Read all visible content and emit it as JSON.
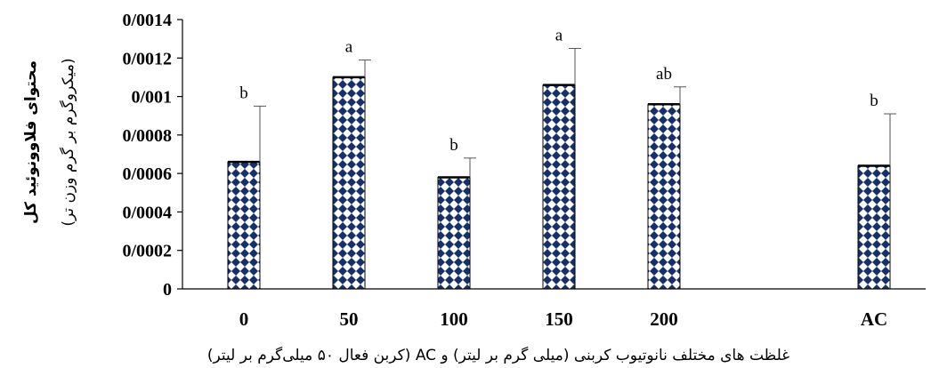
{
  "chart_data": {
    "type": "bar",
    "categories": [
      "0",
      "50",
      "100",
      "150",
      "200",
      "",
      "AC"
    ],
    "values": [
      0.00066,
      0.0011,
      0.00058,
      0.00106,
      0.00096,
      null,
      0.00064
    ],
    "errors": [
      0.00029,
      9e-05,
      0.0001,
      0.00019,
      9e-05,
      null,
      0.00027
    ],
    "significance": [
      "b",
      "a",
      "b",
      "a",
      "ab",
      "",
      "b"
    ],
    "ylim": [
      0,
      0.0014
    ],
    "yticks": [
      "0",
      "0/0002",
      "0/0004",
      "0/0006",
      "0/0008",
      "0/001",
      "0/0012",
      "0/0014"
    ],
    "ytick_values": [
      0,
      0.0002,
      0.0004,
      0.0006,
      0.0008,
      0.001,
      0.0012,
      0.0014
    ],
    "ylabel_line1": "محتوای فلاوونوئید کل",
    "ylabel_line2": "(میکروگرم بر گرم وزن تر)",
    "xlabel": "غلظت های مختلف نانوتیوب کربنی (میلی گرم بر لیتر) و AC (کربن فعال ۵۰ میلی‌گرم بر لیتر)",
    "grid": false,
    "colors": {
      "bar_fill": "#16306b",
      "bar_pattern_bg": "#ffffff",
      "axis": "#000000"
    }
  }
}
